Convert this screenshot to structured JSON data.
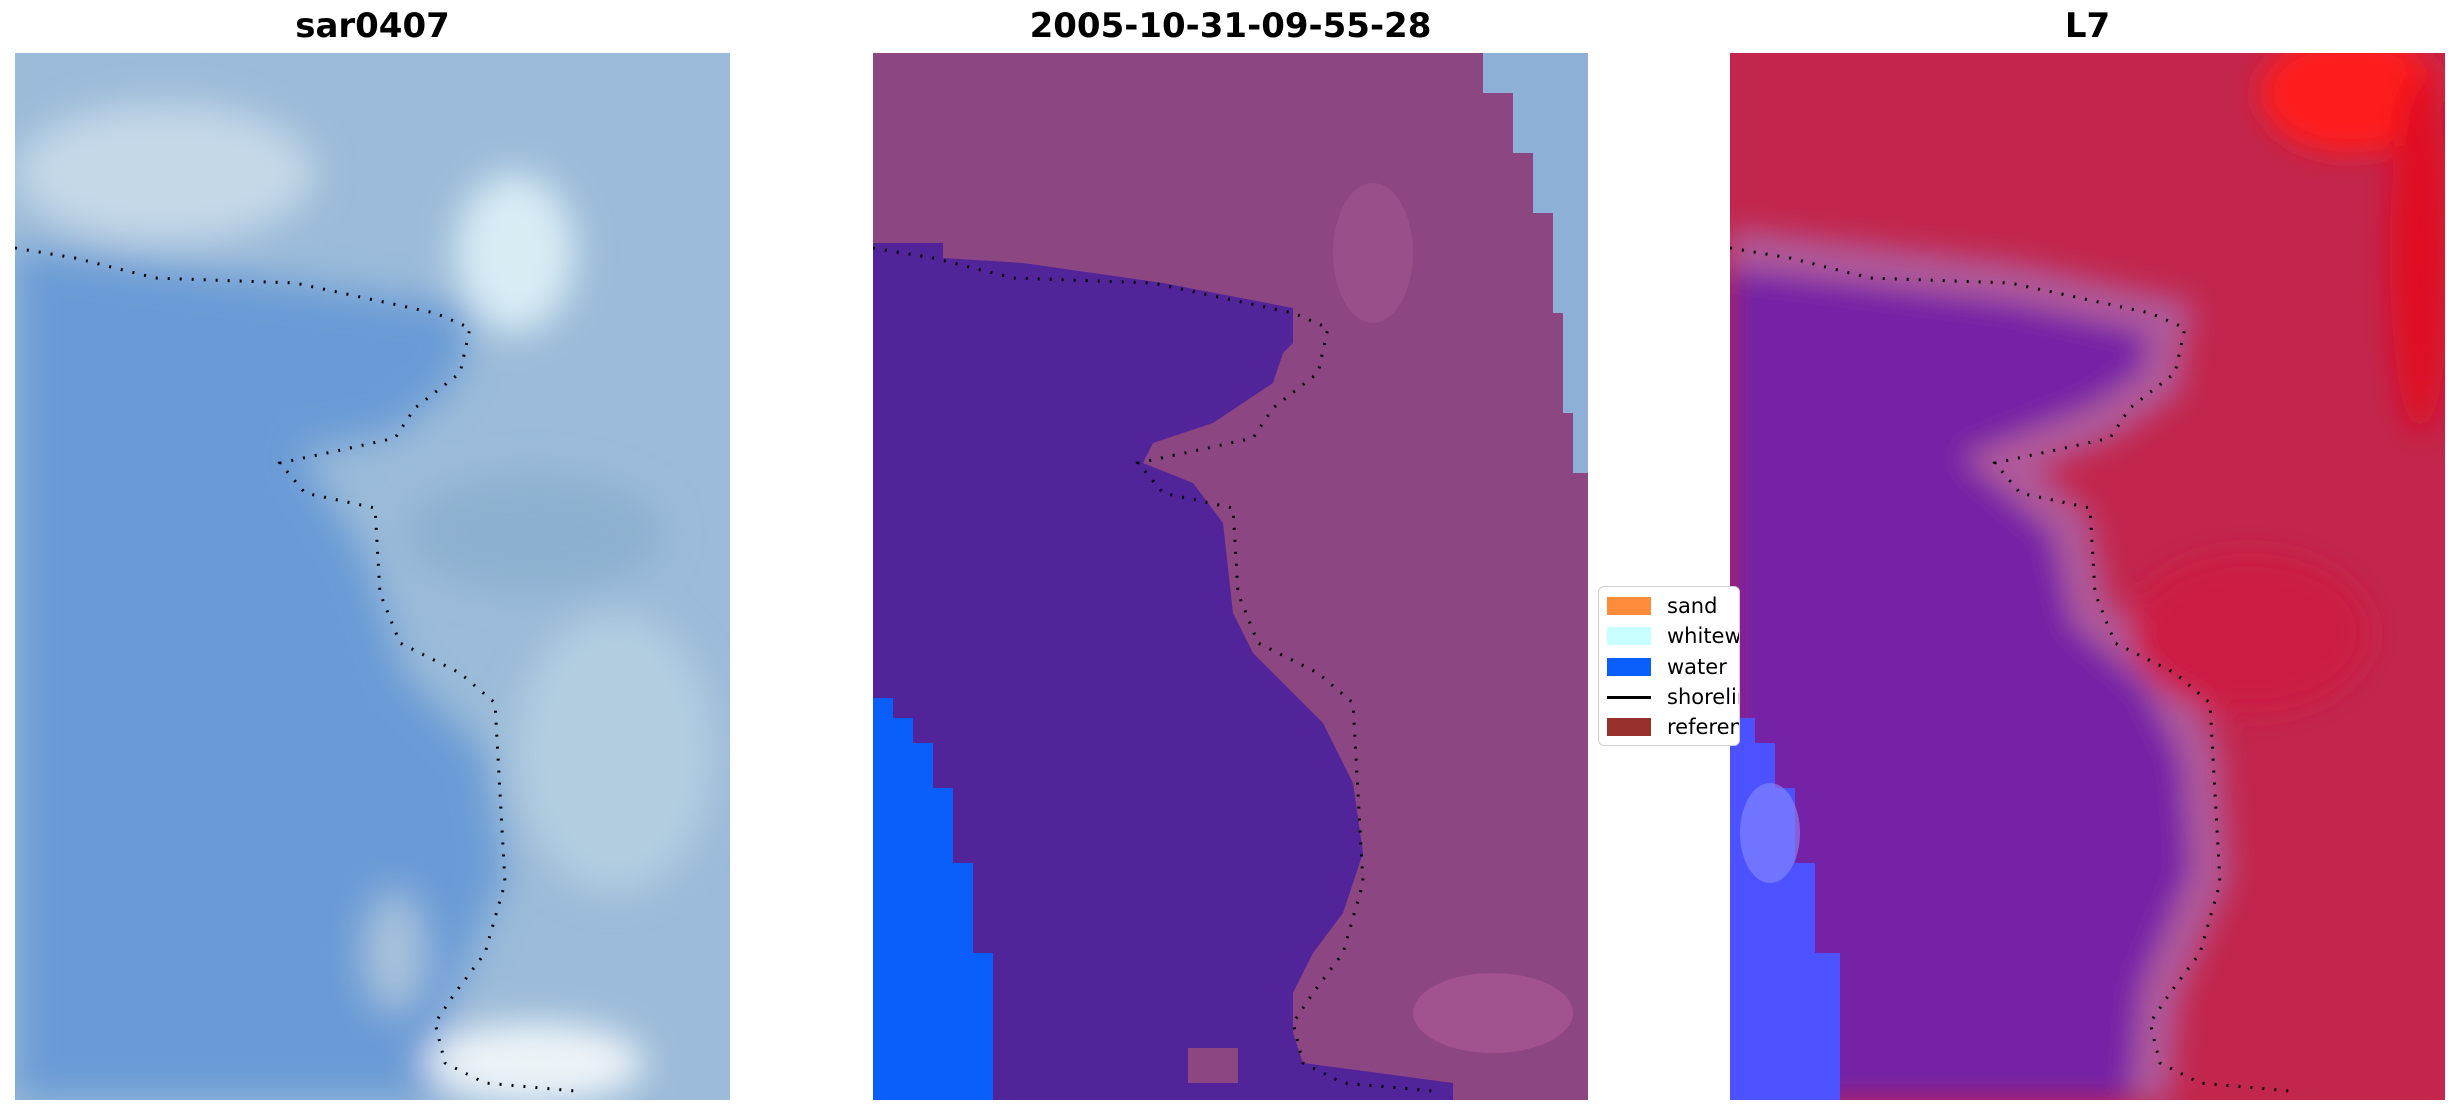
{
  "panels": [
    {
      "title": "sar0407"
    },
    {
      "title": "2005-10-31-09-55-28"
    },
    {
      "title": "L7"
    }
  ],
  "legend": {
    "items": [
      {
        "label": "sand",
        "color": "#ff8c3a",
        "kind": "patch"
      },
      {
        "label": "whitewater",
        "color": "#c8ffff",
        "kind": "patch"
      },
      {
        "label": "water",
        "color": "#0a5ffa",
        "kind": "patch"
      },
      {
        "label": "shoreline",
        "color": "#000000",
        "kind": "line"
      },
      {
        "label": "reference shoreline",
        "color": "#98302e",
        "kind": "patch"
      }
    ]
  },
  "colors": {
    "sar_water": "#6a9bd6",
    "sar_land": "#9bbbd8",
    "classified_water": "#52249a",
    "classified_land": "#8c4682",
    "classified_ocean_blue": "#0a5ffa",
    "l7_water": "#7420a6",
    "l7_land": "#c2264c",
    "l7_blue_patch": "#4c52ff",
    "shoreline_dots": "#000000"
  }
}
